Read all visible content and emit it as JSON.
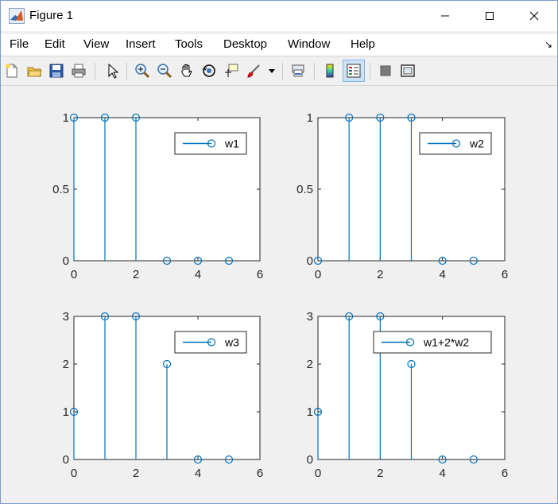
{
  "window": {
    "title": "Figure 1"
  },
  "menu": {
    "items": [
      "File",
      "Edit",
      "View",
      "Insert",
      "Tools",
      "Desktop",
      "Window",
      "Help"
    ],
    "overflow_arrow": "↘"
  },
  "toolbar": {
    "buttons": [
      "new-figure-icon",
      "open-file-icon",
      "save-icon",
      "print-icon",
      "edit-plot-arrow-icon",
      "zoom-in-icon",
      "zoom-out-icon",
      "pan-hand-icon",
      "rotate-3d-icon",
      "data-cursor-icon",
      "brush-icon",
      "brush-dropdown-icon",
      "link-plot-icon",
      "insert-colorbar-icon",
      "insert-legend-icon",
      "hide-plot-tools-icon",
      "show-plot-tools-icon"
    ],
    "pressed": "insert-legend-icon"
  },
  "colors": {
    "series": "#0072BD",
    "axes": "#262626"
  },
  "chart_data": [
    {
      "type": "stem",
      "x": [
        0,
        1,
        2,
        3,
        4,
        5
      ],
      "series": [
        {
          "name": "w1",
          "values": [
            1,
            1,
            1,
            0,
            0,
            0
          ]
        }
      ],
      "xlim": [
        0,
        6
      ],
      "ylim": [
        0,
        1
      ],
      "xticks": [
        "0",
        "2",
        "4",
        "6"
      ],
      "yticks": [
        "0",
        "0.5",
        "1"
      ],
      "legend": "top-right",
      "grid": false
    },
    {
      "type": "stem",
      "x": [
        0,
        1,
        2,
        3,
        4,
        5
      ],
      "series": [
        {
          "name": "w2",
          "values": [
            0,
            1,
            1,
            1,
            0,
            0
          ]
        }
      ],
      "xlim": [
        0,
        6
      ],
      "ylim": [
        0,
        1
      ],
      "xticks": [
        "0",
        "2",
        "4",
        "6"
      ],
      "yticks": [
        "0",
        "0.5",
        "1"
      ],
      "legend": "top-right",
      "grid": false
    },
    {
      "type": "stem",
      "x": [
        0,
        1,
        2,
        3,
        4,
        5
      ],
      "series": [
        {
          "name": "w3",
          "values": [
            1,
            3,
            3,
            2,
            0,
            0
          ]
        }
      ],
      "xlim": [
        0,
        6
      ],
      "ylim": [
        0,
        3
      ],
      "xticks": [
        "0",
        "2",
        "4",
        "6"
      ],
      "yticks": [
        "0",
        "1",
        "2",
        "3"
      ],
      "legend": "top-right",
      "grid": false
    },
    {
      "type": "stem",
      "x": [
        0,
        1,
        2,
        3,
        4,
        5
      ],
      "series": [
        {
          "name": "w1+2*w2",
          "values": [
            1,
            3,
            3,
            2,
            0,
            0
          ]
        }
      ],
      "xlim": [
        0,
        6
      ],
      "ylim": [
        0,
        3
      ],
      "xticks": [
        "0",
        "2",
        "4",
        "6"
      ],
      "yticks": [
        "0",
        "1",
        "2",
        "3"
      ],
      "legend": "top-right",
      "grid": false
    }
  ]
}
